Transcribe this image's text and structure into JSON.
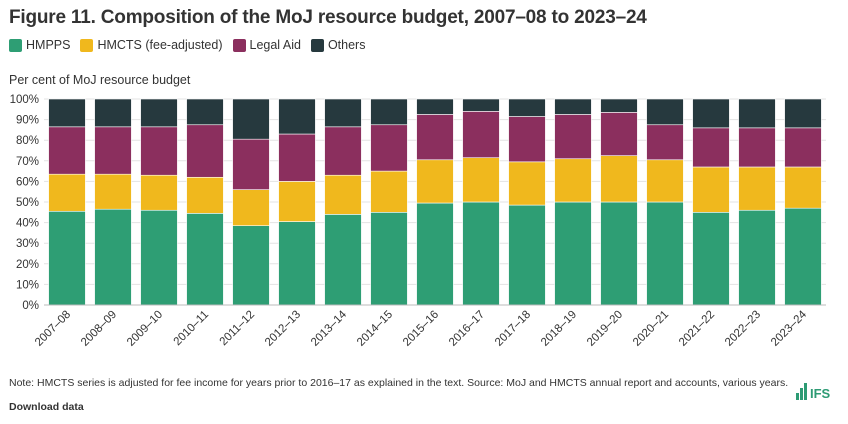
{
  "title": "Figure 11. Composition of the MoJ resource budget, 2007–08 to 2023–24",
  "legend": [
    {
      "label": "HMPPS",
      "color": "#2e9e74"
    },
    {
      "label": "HMCTS (fee-adjusted)",
      "color": "#f0b81d"
    },
    {
      "label": "Legal Aid",
      "color": "#8b2f5e"
    },
    {
      "label": "Others",
      "color": "#26393e"
    }
  ],
  "y_axis_label": "Per cent of MoJ resource budget",
  "note": "Note: HMCTS series is adjusted for fee income for years prior to 2016–17 as explained in the text. Source: MoJ and HMCTS annual report and accounts, various years.",
  "download_label": "Download data",
  "logo_text": "IFS",
  "chart_data": {
    "type": "bar",
    "stacked": true,
    "title": "Figure 11. Composition of the MoJ resource budget, 2007–08 to 2023–24",
    "xlabel": "",
    "ylabel": "Per cent of MoJ resource budget",
    "ylim": [
      0,
      100
    ],
    "yticks": [
      "0%",
      "10%",
      "20%",
      "30%",
      "40%",
      "50%",
      "60%",
      "70%",
      "80%",
      "90%",
      "100%"
    ],
    "categories": [
      "2007–08",
      "2008–09",
      "2009–10",
      "2010–11",
      "2011–12",
      "2012–13",
      "2013–14",
      "2014–15",
      "2015–16",
      "2016–17",
      "2017–18",
      "2018–19",
      "2019–20",
      "2020–21",
      "2021–22",
      "2022–23",
      "2023–24"
    ],
    "series": [
      {
        "name": "HMPPS",
        "color": "#2e9e74",
        "values": [
          45.5,
          46.5,
          46,
          44.5,
          38.5,
          40.5,
          44,
          45,
          49.5,
          50,
          48.5,
          50,
          50,
          50,
          45,
          46,
          47
        ]
      },
      {
        "name": "HMCTS (fee-adjusted)",
        "color": "#f0b81d",
        "values": [
          18,
          17,
          17,
          17.5,
          17.5,
          19.5,
          19,
          20,
          21,
          21.5,
          21,
          21,
          22.5,
          20.5,
          22,
          21,
          20
        ]
      },
      {
        "name": "Legal Aid",
        "color": "#8b2f5e",
        "values": [
          23,
          23,
          23.5,
          25.5,
          24.5,
          23,
          23.5,
          22.5,
          22,
          22.5,
          22,
          21.5,
          21,
          17,
          19,
          19,
          19
        ]
      },
      {
        "name": "Others",
        "color": "#26393e",
        "values": [
          13.5,
          13.5,
          13.5,
          12.5,
          19.5,
          17,
          13.5,
          12.5,
          7.5,
          6,
          8.5,
          7.5,
          6.5,
          12.5,
          14,
          14,
          14
        ]
      }
    ]
  }
}
